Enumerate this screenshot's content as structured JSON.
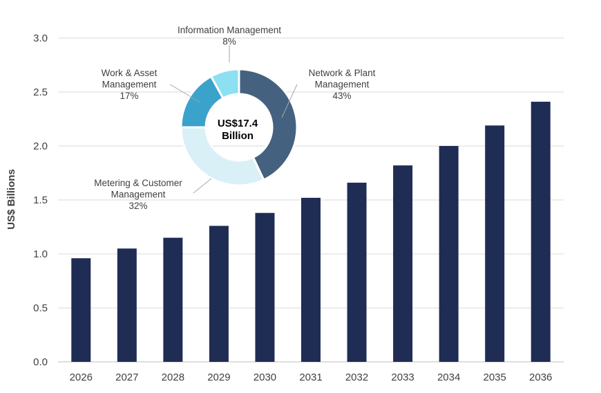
{
  "chart_data": [
    {
      "type": "bar",
      "ylabel": "US$ Billions",
      "xlabel": "",
      "categories": [
        "2026",
        "2027",
        "2028",
        "2029",
        "2030",
        "2031",
        "2032",
        "2033",
        "2034",
        "2035",
        "2036"
      ],
      "values": [
        0.96,
        1.05,
        1.15,
        1.26,
        1.38,
        1.52,
        1.66,
        1.82,
        2.0,
        2.19,
        2.41
      ],
      "ylim": [
        0,
        3.0
      ],
      "yticks": [
        "0.0",
        "0.5",
        "1.0",
        "1.5",
        "2.0",
        "2.5",
        "3.0"
      ],
      "grid": true,
      "colors": {
        "bar": "#1f2d55",
        "grid": "#d9d9d9"
      }
    },
    {
      "type": "pie",
      "donut": true,
      "center_label": [
        "US$17.4",
        "Billion"
      ],
      "slices": [
        {
          "label": [
            "Network & Plant",
            "Management"
          ],
          "percent_label": "43%",
          "value": 43,
          "color": "#44617f"
        },
        {
          "label": [
            "Metering & Customer",
            "Management"
          ],
          "percent_label": "32%",
          "value": 32,
          "color": "#daf0f7"
        },
        {
          "label": [
            "Work & Asset",
            "Management"
          ],
          "percent_label": "17%",
          "value": 17,
          "color": "#3ba2cc"
        },
        {
          "label": [
            "Information Management"
          ],
          "percent_label": "8%",
          "value": 8,
          "color": "#8ce0f2"
        }
      ]
    }
  ]
}
